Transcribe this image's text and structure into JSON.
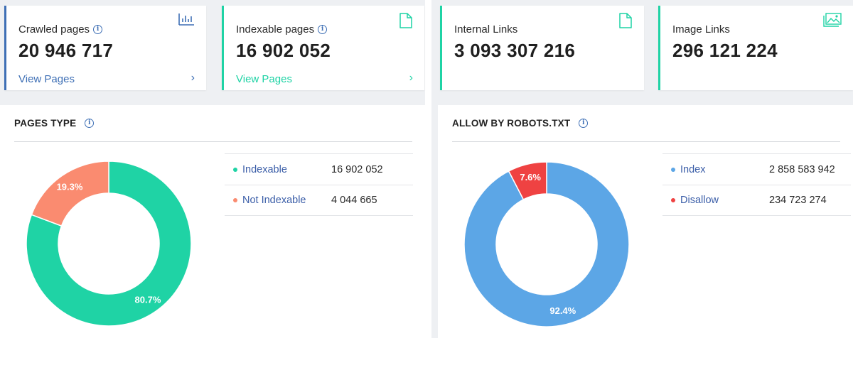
{
  "cards": {
    "crawled": {
      "title": "Crawled pages",
      "value": "20 946 717",
      "link": "View Pages",
      "accent": "#3e6fb5",
      "icon": "bar-chart-icon"
    },
    "indexable": {
      "title": "Indexable pages",
      "value": "16 902 052",
      "link": "View Pages",
      "accent": "#1fd3a5",
      "icon": "document-icon"
    },
    "internal_links": {
      "title": "Internal Links",
      "value": "3 093 307 216",
      "accent": "#1fd3a5",
      "icon": "document-icon"
    },
    "image_links": {
      "title": "Image Links",
      "value": "296 121 224",
      "accent": "#1fd3a5",
      "icon": "image-icon"
    }
  },
  "chevron": "›",
  "info_glyph": "i",
  "pages_type": {
    "title": "PAGES TYPE",
    "legend": [
      {
        "label": "Indexable",
        "value": "16 902 052",
        "color": "#1fd3a5"
      },
      {
        "label": "Not Indexable",
        "value": "4 044 665",
        "color": "#fa8b70"
      }
    ],
    "slice_labels": [
      "80.7%",
      "19.3%"
    ]
  },
  "robots": {
    "title": "ALLOW BY ROBOTS.TXT",
    "legend": [
      {
        "label": "Index",
        "value": "2 858 583 942",
        "color": "#5ca6e6"
      },
      {
        "label": "Disallow",
        "value": "234 723 274",
        "color": "#ef4242"
      }
    ],
    "slice_labels": [
      "92.4%",
      "7.6%"
    ]
  },
  "chart_data": [
    {
      "type": "pie",
      "title": "PAGES TYPE",
      "categories": [
        "Indexable",
        "Not Indexable"
      ],
      "values": [
        80.7,
        19.3
      ],
      "colors": [
        "#1fd3a5",
        "#fa8b70"
      ],
      "legend": "right"
    },
    {
      "type": "pie",
      "title": "ALLOW BY ROBOTS.TXT",
      "categories": [
        "Index",
        "Disallow"
      ],
      "values": [
        92.4,
        7.6
      ],
      "colors": [
        "#5ca6e6",
        "#ef4242"
      ],
      "legend": "right"
    }
  ]
}
